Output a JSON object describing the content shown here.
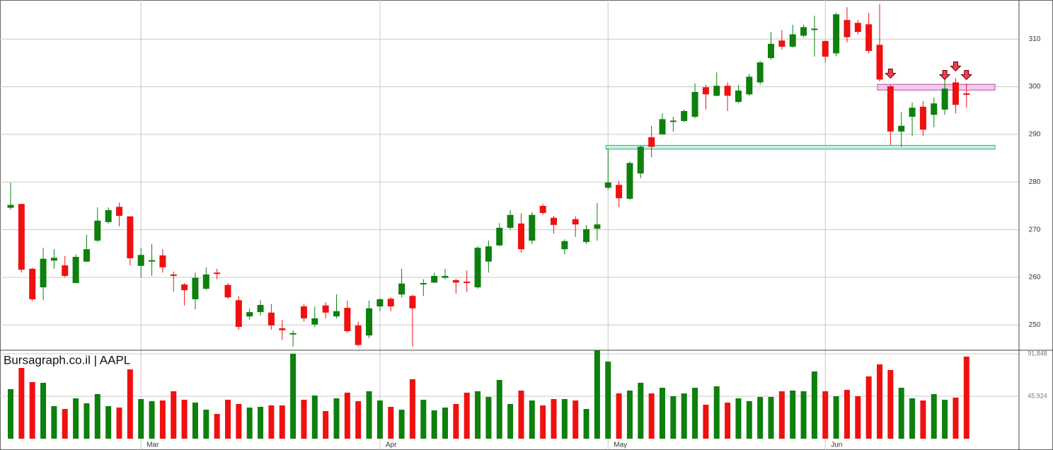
{
  "chart_data": {
    "type": "candlestick",
    "watermark": "Bursagraph.co.il | AAPL",
    "grid": true,
    "up_color": "#0d800d",
    "down_color": "#f01010",
    "categories": [
      null,
      null,
      null,
      null,
      null,
      null,
      null,
      null,
      null,
      null,
      null,
      null,
      "Mar",
      null,
      null,
      null,
      null,
      null,
      null,
      null,
      null,
      null,
      null,
      null,
      null,
      null,
      null,
      null,
      null,
      null,
      null,
      null,
      null,
      null,
      "Apr",
      null,
      null,
      null,
      null,
      null,
      null,
      null,
      null,
      null,
      null,
      null,
      null,
      null,
      null,
      null,
      null,
      null,
      null,
      null,
      null,
      "May",
      null,
      null,
      null,
      null,
      null,
      null,
      null,
      null,
      null,
      null,
      null,
      null,
      null,
      null,
      null,
      null,
      null,
      null,
      null,
      "Jun",
      null,
      null,
      null,
      null,
      null,
      null,
      null,
      null,
      null,
      null,
      null,
      null,
      null
    ],
    "open": [
      274.6,
      275.4,
      261.8,
      257.9,
      263.5,
      262.5,
      258.8,
      263.3,
      267.7,
      271.6,
      274.8,
      272.8,
      262.4,
      263.3,
      264.6,
      260.6,
      258.5,
      255.4,
      257.6,
      261.0,
      258.4,
      255.2,
      251.8,
      252.7,
      252.6,
      249.3,
      248.0,
      253.9,
      250.1,
      254.1,
      251.8,
      253.6,
      249.9,
      247.8,
      253.9,
      255.5,
      256.4,
      256.1,
      258.5,
      258.9,
      259.9,
      259.4,
      259.1,
      257.9,
      263.3,
      266.7,
      270.4,
      271.3,
      267.7,
      275.0,
      272.5,
      265.9,
      272.2,
      267.4,
      270.2,
      278.8,
      279.4,
      276.5,
      281.8,
      289.4,
      290.0,
      292.6,
      292.8,
      293.7,
      299.9,
      298.1,
      300.2,
      296.8,
      298.4,
      300.9,
      306.0,
      309.7,
      308.4,
      310.7,
      311.9,
      309.6,
      307.0,
      314.0,
      313.4,
      313.1,
      308.8,
      300.1,
      290.6,
      293.7,
      295.8,
      294.1,
      295.2,
      300.9,
      298.6
    ],
    "high": [
      279.9,
      275.4,
      262.0,
      266.2,
      265.9,
      264.5,
      264.8,
      268.9,
      274.7,
      274.7,
      275.7,
      272.8,
      266.2,
      267.0,
      265.9,
      261.2,
      258.8,
      261.0,
      262.1,
      261.8,
      258.8,
      256.1,
      253.5,
      255.2,
      254.4,
      251.1,
      248.9,
      254.4,
      253.9,
      254.8,
      256.4,
      255.1,
      250.7,
      255.1,
      255.6,
      255.8,
      261.8,
      256.4,
      259.6,
      261.0,
      261.8,
      259.7,
      261.5,
      266.5,
      267.7,
      271.4,
      274.1,
      273.4,
      273.7,
      275.4,
      272.9,
      268.0,
      272.8,
      271.0,
      275.6,
      287.0,
      280.3,
      284.3,
      287.6,
      291.8,
      294.4,
      293.7,
      295.2,
      300.7,
      300.4,
      303.0,
      300.9,
      300.4,
      302.7,
      305.4,
      311.5,
      311.9,
      313.0,
      313.0,
      314.9,
      309.7,
      315.5,
      316.7,
      314.0,
      315.5,
      317.4,
      300.4,
      294.7,
      296.7,
      297.0,
      297.7,
      301.5,
      301.8,
      300.7
    ],
    "low": [
      274.2,
      261.0,
      255.0,
      255.2,
      261.8,
      260.0,
      258.8,
      263.2,
      267.4,
      271.3,
      270.7,
      262.5,
      260.0,
      260.3,
      261.0,
      257.0,
      254.1,
      253.3,
      257.3,
      259.6,
      255.5,
      249.0,
      251.1,
      252.0,
      249.0,
      246.9,
      245.5,
      250.7,
      249.6,
      251.4,
      251.4,
      248.4,
      245.5,
      247.2,
      252.9,
      252.9,
      255.8,
      245.5,
      256.1,
      258.8,
      259.6,
      256.6,
      256.9,
      257.6,
      261.0,
      266.5,
      270.0,
      265.2,
      267.0,
      273.2,
      269.2,
      264.8,
      268.5,
      267.0,
      267.7,
      278.4,
      274.7,
      276.3,
      280.8,
      285.2,
      290.0,
      290.6,
      292.6,
      293.4,
      295.2,
      298.0,
      294.9,
      296.5,
      298.1,
      300.4,
      305.7,
      307.8,
      308.2,
      310.4,
      306.3,
      305.1,
      306.4,
      309.3,
      311.0,
      307.0,
      301.1,
      287.8,
      287.4,
      289.7,
      289.7,
      291.5,
      294.1,
      294.4,
      295.6
    ],
    "close": [
      275.2,
      261.6,
      255.4,
      263.9,
      264.1,
      260.3,
      264.3,
      265.9,
      271.9,
      274.1,
      272.9,
      264.0,
      264.7,
      263.6,
      262.1,
      260.3,
      257.3,
      259.9,
      260.6,
      260.7,
      255.8,
      249.6,
      252.7,
      254.2,
      249.9,
      248.9,
      248.3,
      251.4,
      251.4,
      252.6,
      252.9,
      248.7,
      245.8,
      253.5,
      255.4,
      253.9,
      258.7,
      253.5,
      258.8,
      260.3,
      260.3,
      258.9,
      258.8,
      266.2,
      266.5,
      270.4,
      273.1,
      265.9,
      273.1,
      273.5,
      271.0,
      267.6,
      271.1,
      270.1,
      271.1,
      279.9,
      276.6,
      284.0,
      287.4,
      287.4,
      293.2,
      292.9,
      294.9,
      298.9,
      298.4,
      300.2,
      298.1,
      299.2,
      302.1,
      305.1,
      309.0,
      308.4,
      311.0,
      312.5,
      312.2,
      306.3,
      315.2,
      310.4,
      311.5,
      307.5,
      301.5,
      290.6,
      291.8,
      295.6,
      291.0,
      296.5,
      299.6,
      296.2,
      298.3
    ],
    "ylim": [
      244.7,
      318.2
    ],
    "yticks": [
      250,
      260,
      270,
      280,
      290,
      300,
      310
    ],
    "volume": {
      "values": [
        53578,
        76540,
        61232,
        60467,
        35208,
        32147,
        43628,
        38270,
        48220,
        35208,
        33678,
        75009,
        42862,
        40566,
        41332,
        51282,
        42097,
        39036,
        31382,
        26789,
        42097,
        37505,
        33678,
        34443,
        35974,
        35974,
        91848,
        42097,
        46689,
        29851,
        43628,
        49751,
        40566,
        51282,
        41332,
        34443,
        31382,
        64294,
        42097,
        30616,
        33678,
        37505,
        49751,
        51282,
        45159,
        63528,
        37505,
        52047,
        41332,
        35974,
        42862,
        42862,
        41332,
        32147,
        95675,
        83429,
        48986,
        52047,
        60467,
        48986,
        55109,
        45924,
        48986,
        55109,
        36740,
        56640,
        39036,
        43628,
        40566,
        45159,
        45159,
        51282,
        52047,
        51282,
        72713,
        51282,
        45924,
        52813,
        45924,
        67356,
        80367,
        74244,
        55109,
        43628,
        41332,
        48220,
        42097,
        44393,
        88787
      ],
      "ylim": [
        0,
        95675
      ],
      "yticks": [
        {
          "value": 45924,
          "label": "45,924"
        },
        {
          "value": 91848,
          "label": "91,848"
        }
      ]
    },
    "zones": [
      {
        "from": 286.9,
        "to": 287.7,
        "start": 55,
        "color": "#30b080",
        "fill": "#b8ecd8"
      },
      {
        "from": 299.3,
        "to": 300.5,
        "start": 80,
        "color": "#b050a0",
        "fill": "#f3c0e6"
      }
    ],
    "markers": [
      {
        "index": 81,
        "value": 301.8
      },
      {
        "index": 86,
        "value": 301.5
      },
      {
        "index": 87,
        "value": 303.3
      },
      {
        "index": 88,
        "value": 301.5
      }
    ]
  }
}
